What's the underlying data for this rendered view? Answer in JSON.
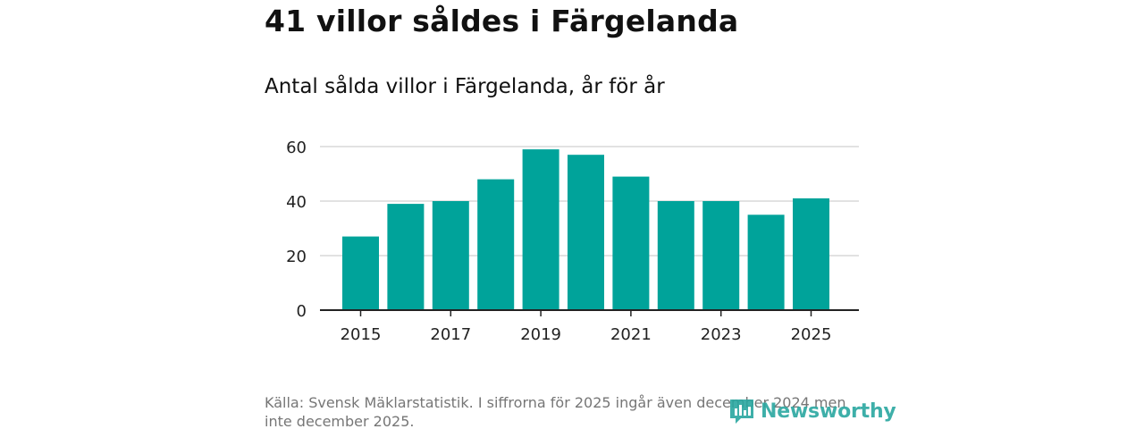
{
  "headline": "41 villor såldes i Färgelanda",
  "subtitle": "Antal sålda villor i Färgelanda, år för år",
  "footer": {
    "source": "Källa: Svensk Mäklarstatistik. I siffrorna för 2025 ingår även december 2024 men inte december 2025."
  },
  "brand": {
    "name": "Newsworthy",
    "icon": "bar-chart-logo-icon"
  },
  "colors": {
    "bar": "#00a39a",
    "grid": "#d9d9d9",
    "axis": "#222222",
    "brand": "#2aa7a0"
  },
  "chart_data": {
    "type": "bar",
    "title": "Antal sålda villor i Färgelanda, år för år",
    "xlabel": "",
    "ylabel": "",
    "categories": [
      "2015",
      "2016",
      "2017",
      "2018",
      "2019",
      "2020",
      "2021",
      "2022",
      "2023",
      "2024",
      "2025"
    ],
    "values": [
      27,
      39,
      40,
      48,
      59,
      57,
      49,
      40,
      40,
      35,
      41
    ],
    "ylim": [
      0,
      60
    ],
    "yticks": [
      "0",
      "20",
      "40",
      "60"
    ],
    "xticks": [
      "2015",
      "2017",
      "2019",
      "2021",
      "2023",
      "2025"
    ],
    "grid": true
  }
}
